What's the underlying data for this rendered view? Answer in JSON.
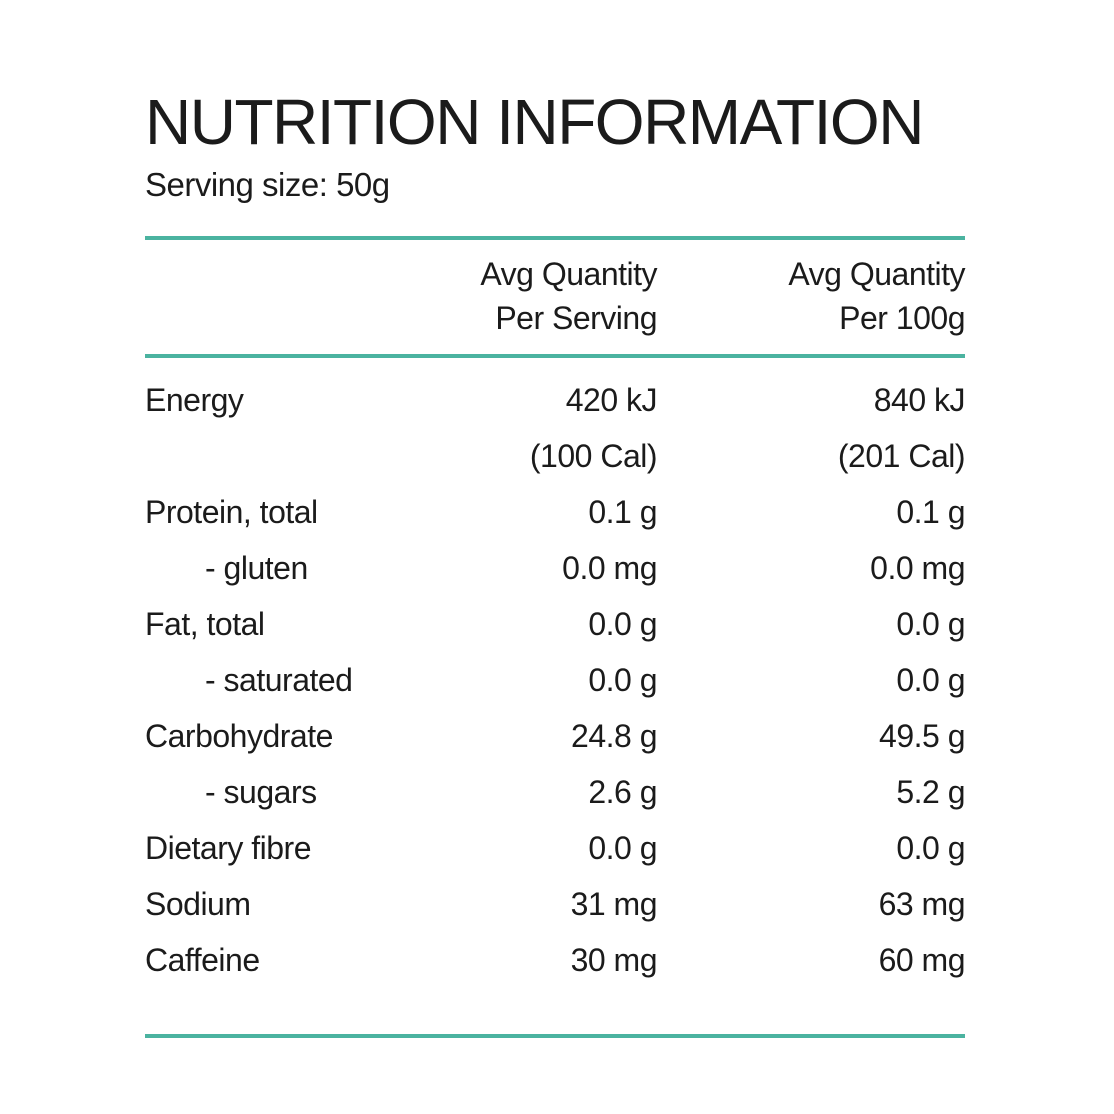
{
  "colors": {
    "accent": "#4BB3A0",
    "text": "#1B1B1B",
    "background": "#FFFFFF"
  },
  "header": {
    "title": "NUTRITION INFORMATION",
    "serving_size": "Serving size: 50g"
  },
  "table": {
    "columns": [
      {
        "label": "Avg Quantity\nPer Serving"
      },
      {
        "label": "Avg Quantity\nPer 100g"
      }
    ],
    "rows": [
      {
        "label": "Energy",
        "indent": false,
        "per_serving": "420 kJ",
        "per_100g": "840 kJ"
      },
      {
        "label": "",
        "indent": false,
        "per_serving": "(100 Cal)",
        "per_100g": "(201 Cal)"
      },
      {
        "label": "Protein, total",
        "indent": false,
        "per_serving": "0.1 g",
        "per_100g": "0.1 g"
      },
      {
        "label": "- gluten",
        "indent": true,
        "per_serving": "0.0 mg",
        "per_100g": "0.0 mg"
      },
      {
        "label": "Fat, total",
        "indent": false,
        "per_serving": "0.0 g",
        "per_100g": "0.0 g"
      },
      {
        "label": "- saturated",
        "indent": true,
        "per_serving": "0.0 g",
        "per_100g": "0.0 g"
      },
      {
        "label": "Carbohydrate",
        "indent": false,
        "per_serving": "24.8 g",
        "per_100g": "49.5 g"
      },
      {
        "label": "- sugars",
        "indent": true,
        "per_serving": "2.6 g",
        "per_100g": "5.2 g"
      },
      {
        "label": "Dietary fibre",
        "indent": false,
        "per_serving": "0.0 g",
        "per_100g": "0.0 g"
      },
      {
        "label": "Sodium",
        "indent": false,
        "per_serving": "31 mg",
        "per_100g": "63 mg"
      },
      {
        "label": "Caffeine",
        "indent": false,
        "per_serving": "30 mg",
        "per_100g": "60 mg"
      }
    ]
  }
}
